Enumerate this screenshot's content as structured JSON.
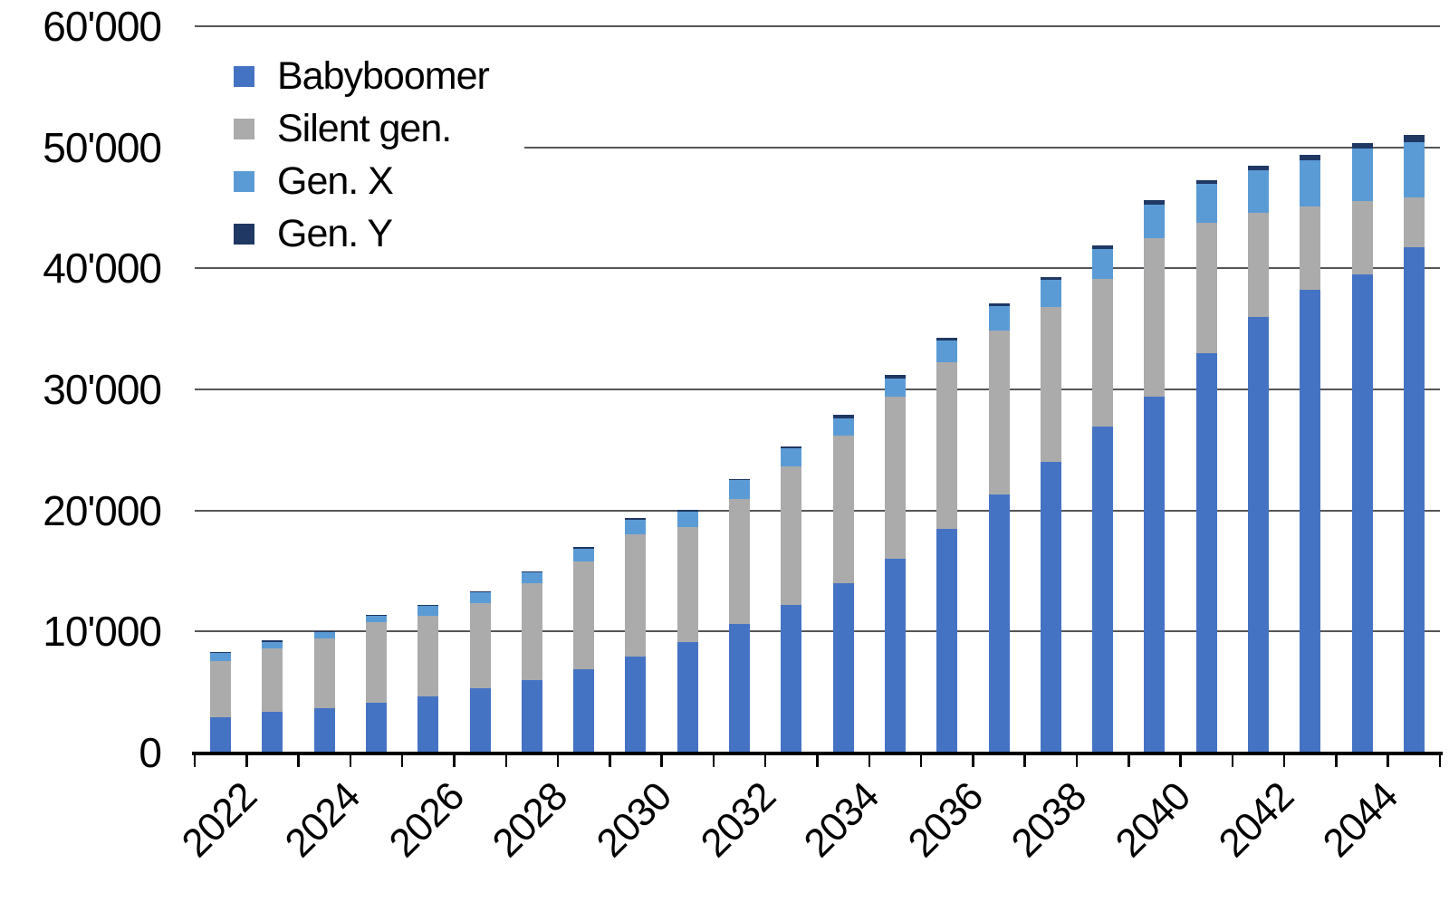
{
  "chart_data": {
    "type": "bar",
    "stacked": true,
    "title": "",
    "xlabel": "",
    "ylabel": "",
    "x": [
      2022,
      2023,
      2024,
      2025,
      2026,
      2027,
      2028,
      2029,
      2030,
      2031,
      2032,
      2033,
      2034,
      2035,
      2036,
      2037,
      2038,
      2039,
      2040,
      2041,
      2042,
      2043,
      2044,
      2045
    ],
    "x_tick_labels": [
      "2022",
      "2024",
      "2026",
      "2028",
      "2030",
      "2032",
      "2034",
      "2036",
      "2038",
      "2040",
      "2042",
      "2044"
    ],
    "series": [
      {
        "name": "Babyboomer",
        "color": "#4573C4",
        "values": [
          2950,
          3350,
          3700,
          4150,
          4650,
          5300,
          6000,
          6900,
          7900,
          9100,
          10600,
          12200,
          14000,
          16000,
          18500,
          21300,
          24050,
          26900,
          29400,
          33000,
          36000,
          38200,
          39500,
          41750
        ]
      },
      {
        "name": "Silent gen.",
        "color": "#ABABAB",
        "values": [
          4600,
          5275,
          5750,
          6600,
          6675,
          7075,
          8000,
          8850,
          10150,
          9525,
          10325,
          11425,
          12200,
          13375,
          13750,
          13575,
          12750,
          12225,
          13100,
          10800,
          8625,
          6925,
          6075,
          4075
        ]
      },
      {
        "name": "Gen. X",
        "color": "#5B9BD5",
        "values": [
          700,
          550,
          550,
          550,
          800,
          875,
          925,
          1100,
          1200,
          1250,
          1575,
          1500,
          1425,
          1500,
          1800,
          2000,
          2250,
          2500,
          2750,
          3150,
          3450,
          3775,
          4325,
          4625
        ]
      },
      {
        "name": "Gen. Y",
        "color": "#1F3864",
        "values": [
          50,
          75,
          50,
          50,
          75,
          50,
          75,
          100,
          125,
          150,
          100,
          175,
          250,
          300,
          250,
          250,
          250,
          250,
          375,
          300,
          375,
          450,
          450,
          575
        ]
      }
    ],
    "ylim": [
      0,
      60000
    ],
    "yticks": [
      {
        "value": 60000,
        "label": "60'000"
      },
      {
        "value": 50000,
        "label": "50'000"
      },
      {
        "value": 40000,
        "label": "40'000"
      },
      {
        "value": 30000,
        "label": "30'000"
      },
      {
        "value": 20000,
        "label": "20'000"
      },
      {
        "value": 10000,
        "label": "10'000"
      },
      {
        "value": 0,
        "label": "0"
      }
    ],
    "grid": "horizontal",
    "gridline_color": "#56565a",
    "axis_color": "#000000",
    "legend_position": "top-left",
    "legend_labels": [
      "Babyboomer",
      "Silent gen.",
      "Gen. X",
      "Gen. Y"
    ]
  }
}
